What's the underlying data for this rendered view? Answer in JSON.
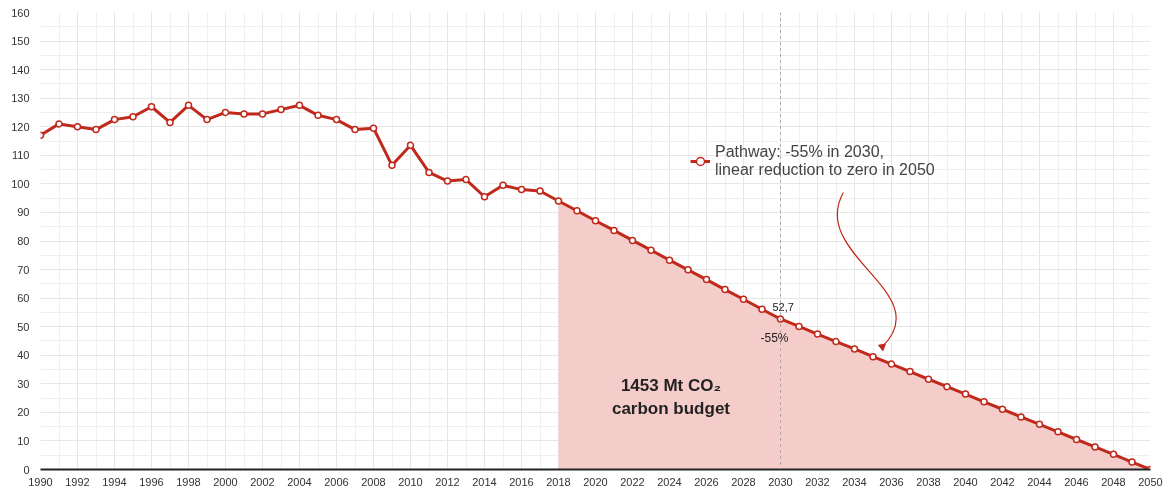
{
  "chart_data": {
    "type": "line",
    "x": [
      1990,
      1991,
      1992,
      1993,
      1994,
      1995,
      1996,
      1997,
      1998,
      1999,
      2000,
      2001,
      2002,
      2003,
      2004,
      2005,
      2006,
      2007,
      2008,
      2009,
      2010,
      2011,
      2012,
      2013,
      2014,
      2015,
      2016,
      2017,
      2018,
      2019,
      2020,
      2021,
      2022,
      2023,
      2024,
      2025,
      2026,
      2027,
      2028,
      2029,
      2030,
      2031,
      2032,
      2033,
      2034,
      2035,
      2036,
      2037,
      2038,
      2039,
      2040,
      2041,
      2042,
      2043,
      2044,
      2045,
      2046,
      2047,
      2048,
      2049,
      2050
    ],
    "series": [
      {
        "name": "Pathway: -55% in 2030,\nlinear reduction to zero in 2050",
        "color": "#c0291b",
        "values": [
          117,
          121,
          120,
          119,
          122.5,
          123.5,
          127,
          121.5,
          127.5,
          122.5,
          125,
          124.5,
          124.5,
          126,
          127.5,
          124,
          122.5,
          119,
          119.5,
          106.5,
          113.5,
          104,
          101,
          101.5,
          95.5,
          99.5,
          98,
          97.5,
          94,
          90.6,
          87.1,
          83.7,
          80.2,
          76.8,
          73.3,
          69.9,
          66.5,
          63.0,
          59.6,
          56.1,
          52.7,
          50.1,
          47.4,
          44.8,
          42.2,
          39.5,
          36.9,
          34.3,
          31.6,
          29.0,
          26.4,
          23.7,
          21.1,
          18.4,
          15.8,
          13.2,
          10.5,
          7.9,
          5.3,
          2.6,
          0
        ]
      },
      {
        "type": "area",
        "color": "#f4cdca",
        "marker": "none",
        "x": [
          2018,
          2019,
          2020,
          2021,
          2022,
          2023,
          2024,
          2025,
          2026,
          2027,
          2028,
          2029,
          2030,
          2031,
          2032,
          2033,
          2034,
          2035,
          2036,
          2037,
          2038,
          2039,
          2040,
          2041,
          2042,
          2043,
          2044,
          2045,
          2046,
          2047,
          2048,
          2049,
          2050
        ],
        "values": [
          94,
          90.6,
          87.1,
          83.7,
          80.2,
          76.8,
          73.3,
          69.9,
          66.5,
          63.0,
          59.6,
          56.1,
          52.7,
          50.1,
          47.4,
          44.8,
          42.2,
          39.5,
          36.9,
          34.3,
          31.6,
          29.0,
          26.4,
          23.7,
          21.1,
          18.4,
          15.8,
          13.2,
          10.5,
          7.9,
          5.3,
          2.6,
          0
        ]
      }
    ],
    "xlim": [
      1990,
      2050
    ],
    "ylim": [
      0,
      160
    ],
    "xticks": [
      1990,
      1992,
      1994,
      1996,
      1998,
      2000,
      2002,
      2004,
      2006,
      2008,
      2010,
      2012,
      2014,
      2016,
      2018,
      2020,
      2022,
      2024,
      2026,
      2028,
      2030,
      2032,
      2034,
      2036,
      2038,
      2040,
      2042,
      2044,
      2046,
      2048,
      2050
    ],
    "yticks": [
      0,
      10,
      20,
      30,
      40,
      50,
      60,
      70,
      80,
      90,
      100,
      110,
      120,
      130,
      140,
      150,
      160
    ],
    "ref_lines": [
      {
        "axis": "x",
        "value": 2030,
        "color": "#999999",
        "line_style": "dotted"
      }
    ],
    "annotations": [
      {
        "text": "52,7",
        "x": 2030,
        "y": 52.7
      },
      {
        "text": "-55%",
        "x": 2030,
        "y": 52.7
      },
      "1453 Mt CO₂\ncarbon budget"
    ],
    "marker": "circle",
    "line_style": "solid",
    "grid": true,
    "legend": "top right"
  }
}
